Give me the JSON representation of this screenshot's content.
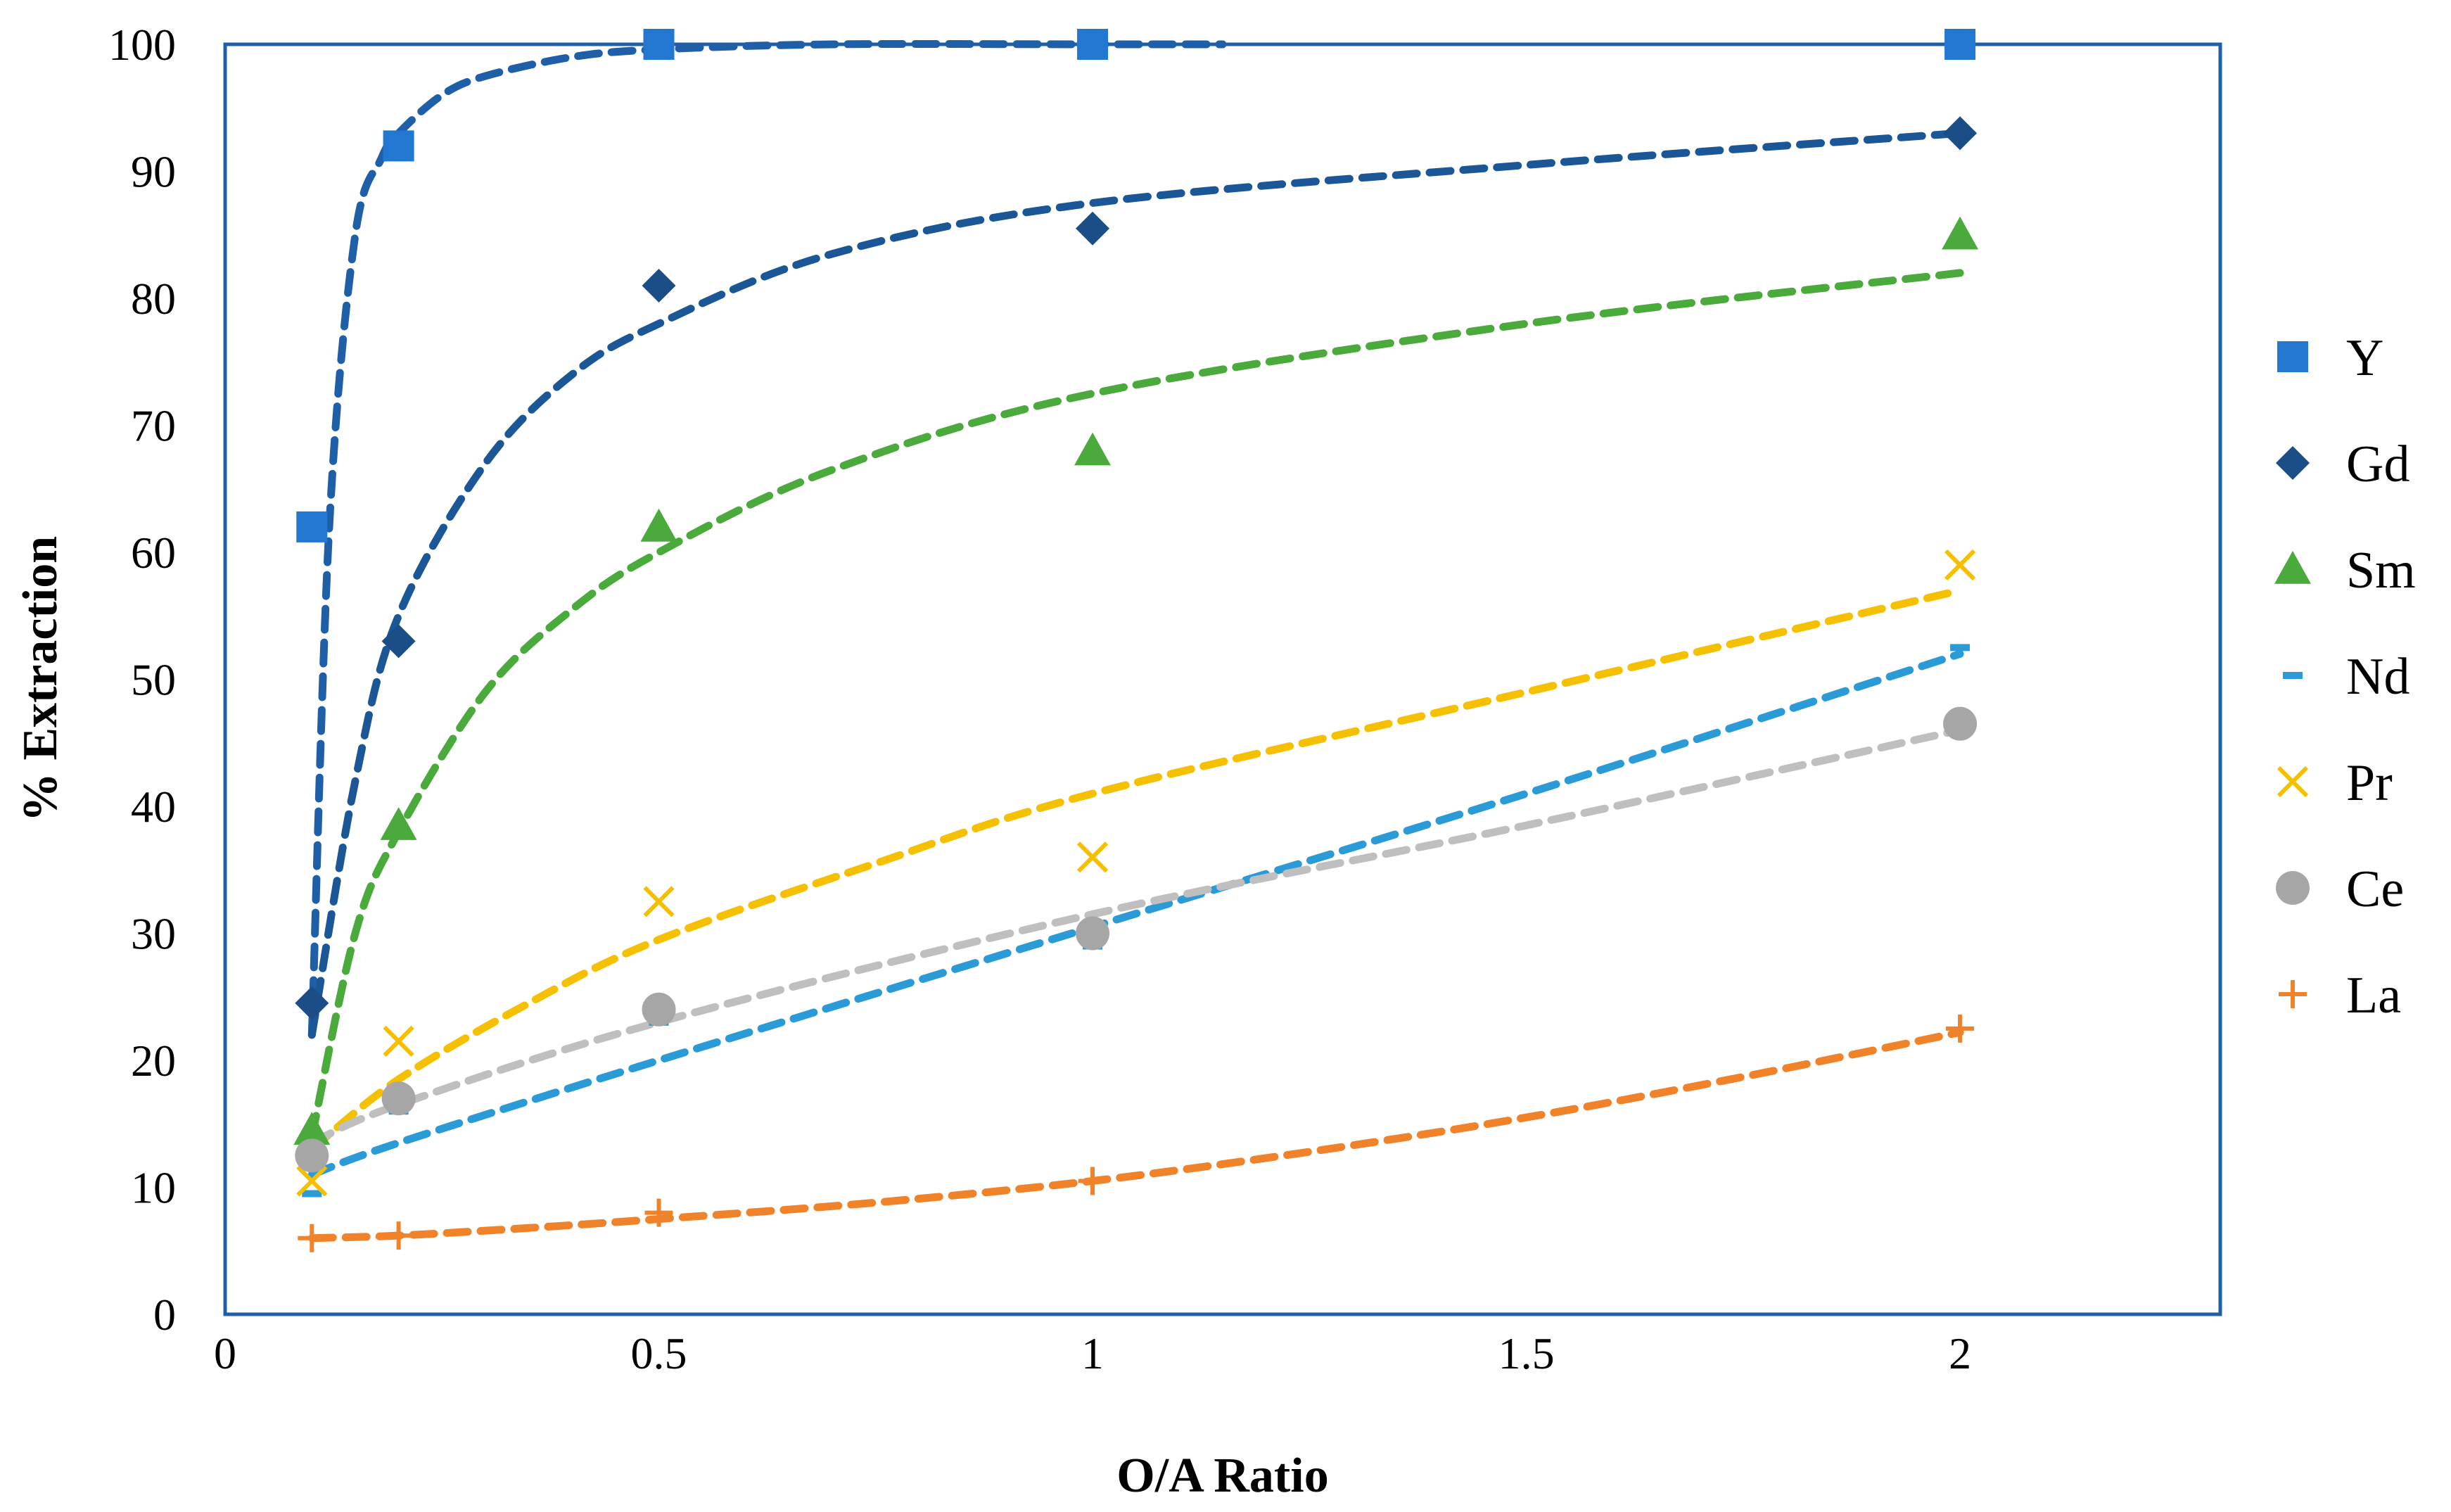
{
  "chart_data": {
    "type": "scatter",
    "xlabel": "O/A Ratio",
    "ylabel": "% Extraction",
    "xlim": [
      0,
      2.3
    ],
    "ylim": [
      0,
      100
    ],
    "x_ticks": [
      0,
      0.5,
      1,
      1.5,
      2
    ],
    "x_tick_labels": [
      "0",
      "0.5",
      "1",
      "1.5",
      "2"
    ],
    "y_ticks": [
      0,
      10,
      20,
      30,
      40,
      50,
      60,
      70,
      80,
      90,
      100
    ],
    "y_tick_labels": [
      "0",
      "10",
      "20",
      "30",
      "40",
      "50",
      "60",
      "70",
      "80",
      "90",
      "100"
    ],
    "grid": false,
    "legend_position": "right",
    "series": [
      {
        "name": "Y",
        "marker": "square",
        "color": "#2277D0",
        "line_color": "#1F5FA8",
        "x": [
          0.1,
          0.2,
          0.5,
          1,
          2
        ],
        "y": [
          62,
          92,
          100,
          100,
          100
        ],
        "trend": {
          "x": [
            0.1,
            0.12,
            0.15,
            0.18,
            0.2,
            0.25,
            0.3,
            0.4,
            0.5,
            0.7,
            1.0,
            1.15
          ],
          "y": [
            22,
            62,
            85,
            91,
            93,
            96,
            97.5,
            99,
            99.6,
            100,
            100,
            100
          ]
        }
      },
      {
        "name": "Gd",
        "marker": "diamond",
        "color": "#1B4E86",
        "line_color": "#1B5797",
        "x": [
          0.1,
          0.2,
          0.5,
          1,
          2
        ],
        "y": [
          24.5,
          53,
          81,
          85.5,
          93
        ],
        "trend": {
          "x": [
            0.1,
            0.15,
            0.2,
            0.3,
            0.4,
            0.5,
            0.7,
            1.0,
            1.5,
            2.0
          ],
          "y": [
            22,
            42,
            55,
            67,
            74,
            78,
            83.5,
            87.5,
            90.5,
            93
          ]
        }
      },
      {
        "name": "Sm",
        "marker": "triangle",
        "color": "#4BAA3C",
        "line_color": "#4BAA3C",
        "x": [
          0.1,
          0.2,
          0.5,
          1,
          2
        ],
        "y": [
          14.5,
          38.5,
          62,
          68,
          85
        ],
        "trend": {
          "x": [
            0.1,
            0.15,
            0.2,
            0.3,
            0.4,
            0.5,
            0.7,
            1.0,
            1.5,
            2.0
          ],
          "y": [
            14,
            30,
            38,
            49,
            55.5,
            60,
            66.5,
            72.5,
            78,
            82
          ]
        }
      },
      {
        "name": "Nd",
        "marker": "dash",
        "color": "#2A9BD6",
        "line_color": "#2A9BD6",
        "x": [
          0.1,
          0.2,
          0.5,
          1,
          2
        ],
        "y": [
          9.5,
          16,
          23,
          29,
          52.5
        ],
        "trend": {
          "x": [
            0.1,
            0.2,
            0.5,
            1.0,
            1.5,
            2.0
          ],
          "y": [
            11,
            13.5,
            20,
            30.5,
            41,
            52
          ]
        }
      },
      {
        "name": "Pr",
        "marker": "x",
        "color": "#F5C000",
        "line_color": "#F5C000",
        "x": [
          0.1,
          0.2,
          0.5,
          1,
          2
        ],
        "y": [
          10.5,
          21.5,
          32.5,
          36,
          59
        ],
        "trend": {
          "x": [
            0.1,
            0.2,
            0.35,
            0.5,
            0.75,
            1.0,
            1.5,
            2.0
          ],
          "y": [
            13,
            18.5,
            24.5,
            29.5,
            35.5,
            41,
            49,
            57
          ]
        }
      },
      {
        "name": "Ce",
        "marker": "circle",
        "color": "#A6A6A6",
        "line_color": "#BFBFBF",
        "x": [
          0.1,
          0.2,
          0.5,
          1,
          2
        ],
        "y": [
          12.5,
          17,
          24,
          30,
          46.5
        ],
        "trend": {
          "x": [
            0.1,
            0.2,
            0.5,
            1.0,
            1.5,
            2.0
          ],
          "y": [
            13.5,
            16.5,
            23,
            31.5,
            38.5,
            46
          ]
        }
      },
      {
        "name": "La",
        "marker": "plus",
        "color": "#F0822A",
        "line_color": "#F0822A",
        "x": [
          0.1,
          0.2,
          0.5,
          1,
          2
        ],
        "y": [
          6,
          6.2,
          8,
          10.5,
          22.5
        ],
        "trend": {
          "x": [
            0.1,
            0.2,
            0.35,
            0.5,
            0.75,
            1.0,
            1.25,
            1.5,
            1.75,
            2.0
          ],
          "y": [
            6,
            6.2,
            6.8,
            7.5,
            8.8,
            10.5,
            12.8,
            15.5,
            18.7,
            22.2
          ]
        }
      }
    ]
  },
  "colors": {
    "plot_border": "#1F5FA8"
  }
}
